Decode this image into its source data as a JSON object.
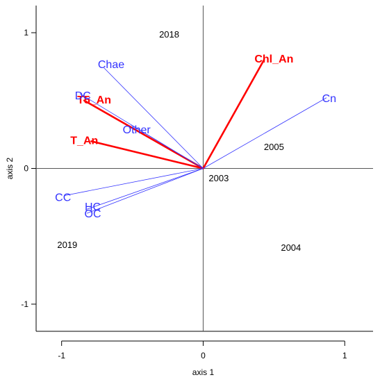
{
  "chart_data": {
    "type": "biplot",
    "xlabel": "axis 1",
    "ylabel": "axis 2",
    "xlim": [
      -1.18,
      1.2
    ],
    "ylim": [
      -1.2,
      1.2
    ],
    "x_ticks": [
      {
        "value": -1,
        "label": "-1"
      },
      {
        "value": 0,
        "label": "0"
      },
      {
        "value": 1,
        "label": "1"
      }
    ],
    "y_ticks": [
      {
        "value": -1,
        "label": "-1"
      },
      {
        "value": 0,
        "label": "0"
      },
      {
        "value": 1,
        "label": "1"
      }
    ],
    "reference_lines": {
      "x": 0,
      "y": 0
    },
    "colors": {
      "strong": "#ff0000",
      "weak": "#3333ff",
      "axis": "#555555",
      "site": "#000000"
    },
    "vectors": [
      {
        "label": "Chl_An",
        "x": 0.43,
        "y": 0.8,
        "lx": 0.5,
        "ly": 0.81,
        "group": "strong"
      },
      {
        "label": "T5_An",
        "x": -0.84,
        "y": 0.5,
        "lx": -0.77,
        "ly": 0.51,
        "group": "strong"
      },
      {
        "label": "T_An",
        "x": -0.79,
        "y": 0.2,
        "lx": -0.84,
        "ly": 0.21,
        "group": "strong"
      },
      {
        "label": "Chae",
        "x": -0.7,
        "y": 0.74,
        "lx": -0.65,
        "ly": 0.77,
        "group": "weak"
      },
      {
        "label": "DC",
        "x": -0.87,
        "y": 0.55,
        "lx": -0.85,
        "ly": 0.54,
        "group": "weak"
      },
      {
        "label": "Other",
        "x": -0.51,
        "y": 0.32,
        "lx": -0.47,
        "ly": 0.29,
        "group": "weak"
      },
      {
        "label": "Cn",
        "x": 0.87,
        "y": 0.52,
        "lx": 0.89,
        "ly": 0.52,
        "group": "weak"
      },
      {
        "label": "CC",
        "x": -0.98,
        "y": -0.2,
        "lx": -0.99,
        "ly": -0.21,
        "group": "weak"
      },
      {
        "label": "HC",
        "x": -0.82,
        "y": -0.3,
        "lx": -0.78,
        "ly": -0.28,
        "group": "weak"
      },
      {
        "label": "OC",
        "x": -0.82,
        "y": -0.33,
        "lx": -0.78,
        "ly": -0.33,
        "group": "weak"
      }
    ],
    "sites": [
      {
        "label": "2018",
        "x": -0.24,
        "y": 0.99
      },
      {
        "label": "2005",
        "x": 0.5,
        "y": 0.16
      },
      {
        "label": "2003",
        "x": 0.11,
        "y": -0.07
      },
      {
        "label": "2019",
        "x": -0.96,
        "y": -0.56
      },
      {
        "label": "2004",
        "x": 0.62,
        "y": -0.58
      }
    ]
  }
}
